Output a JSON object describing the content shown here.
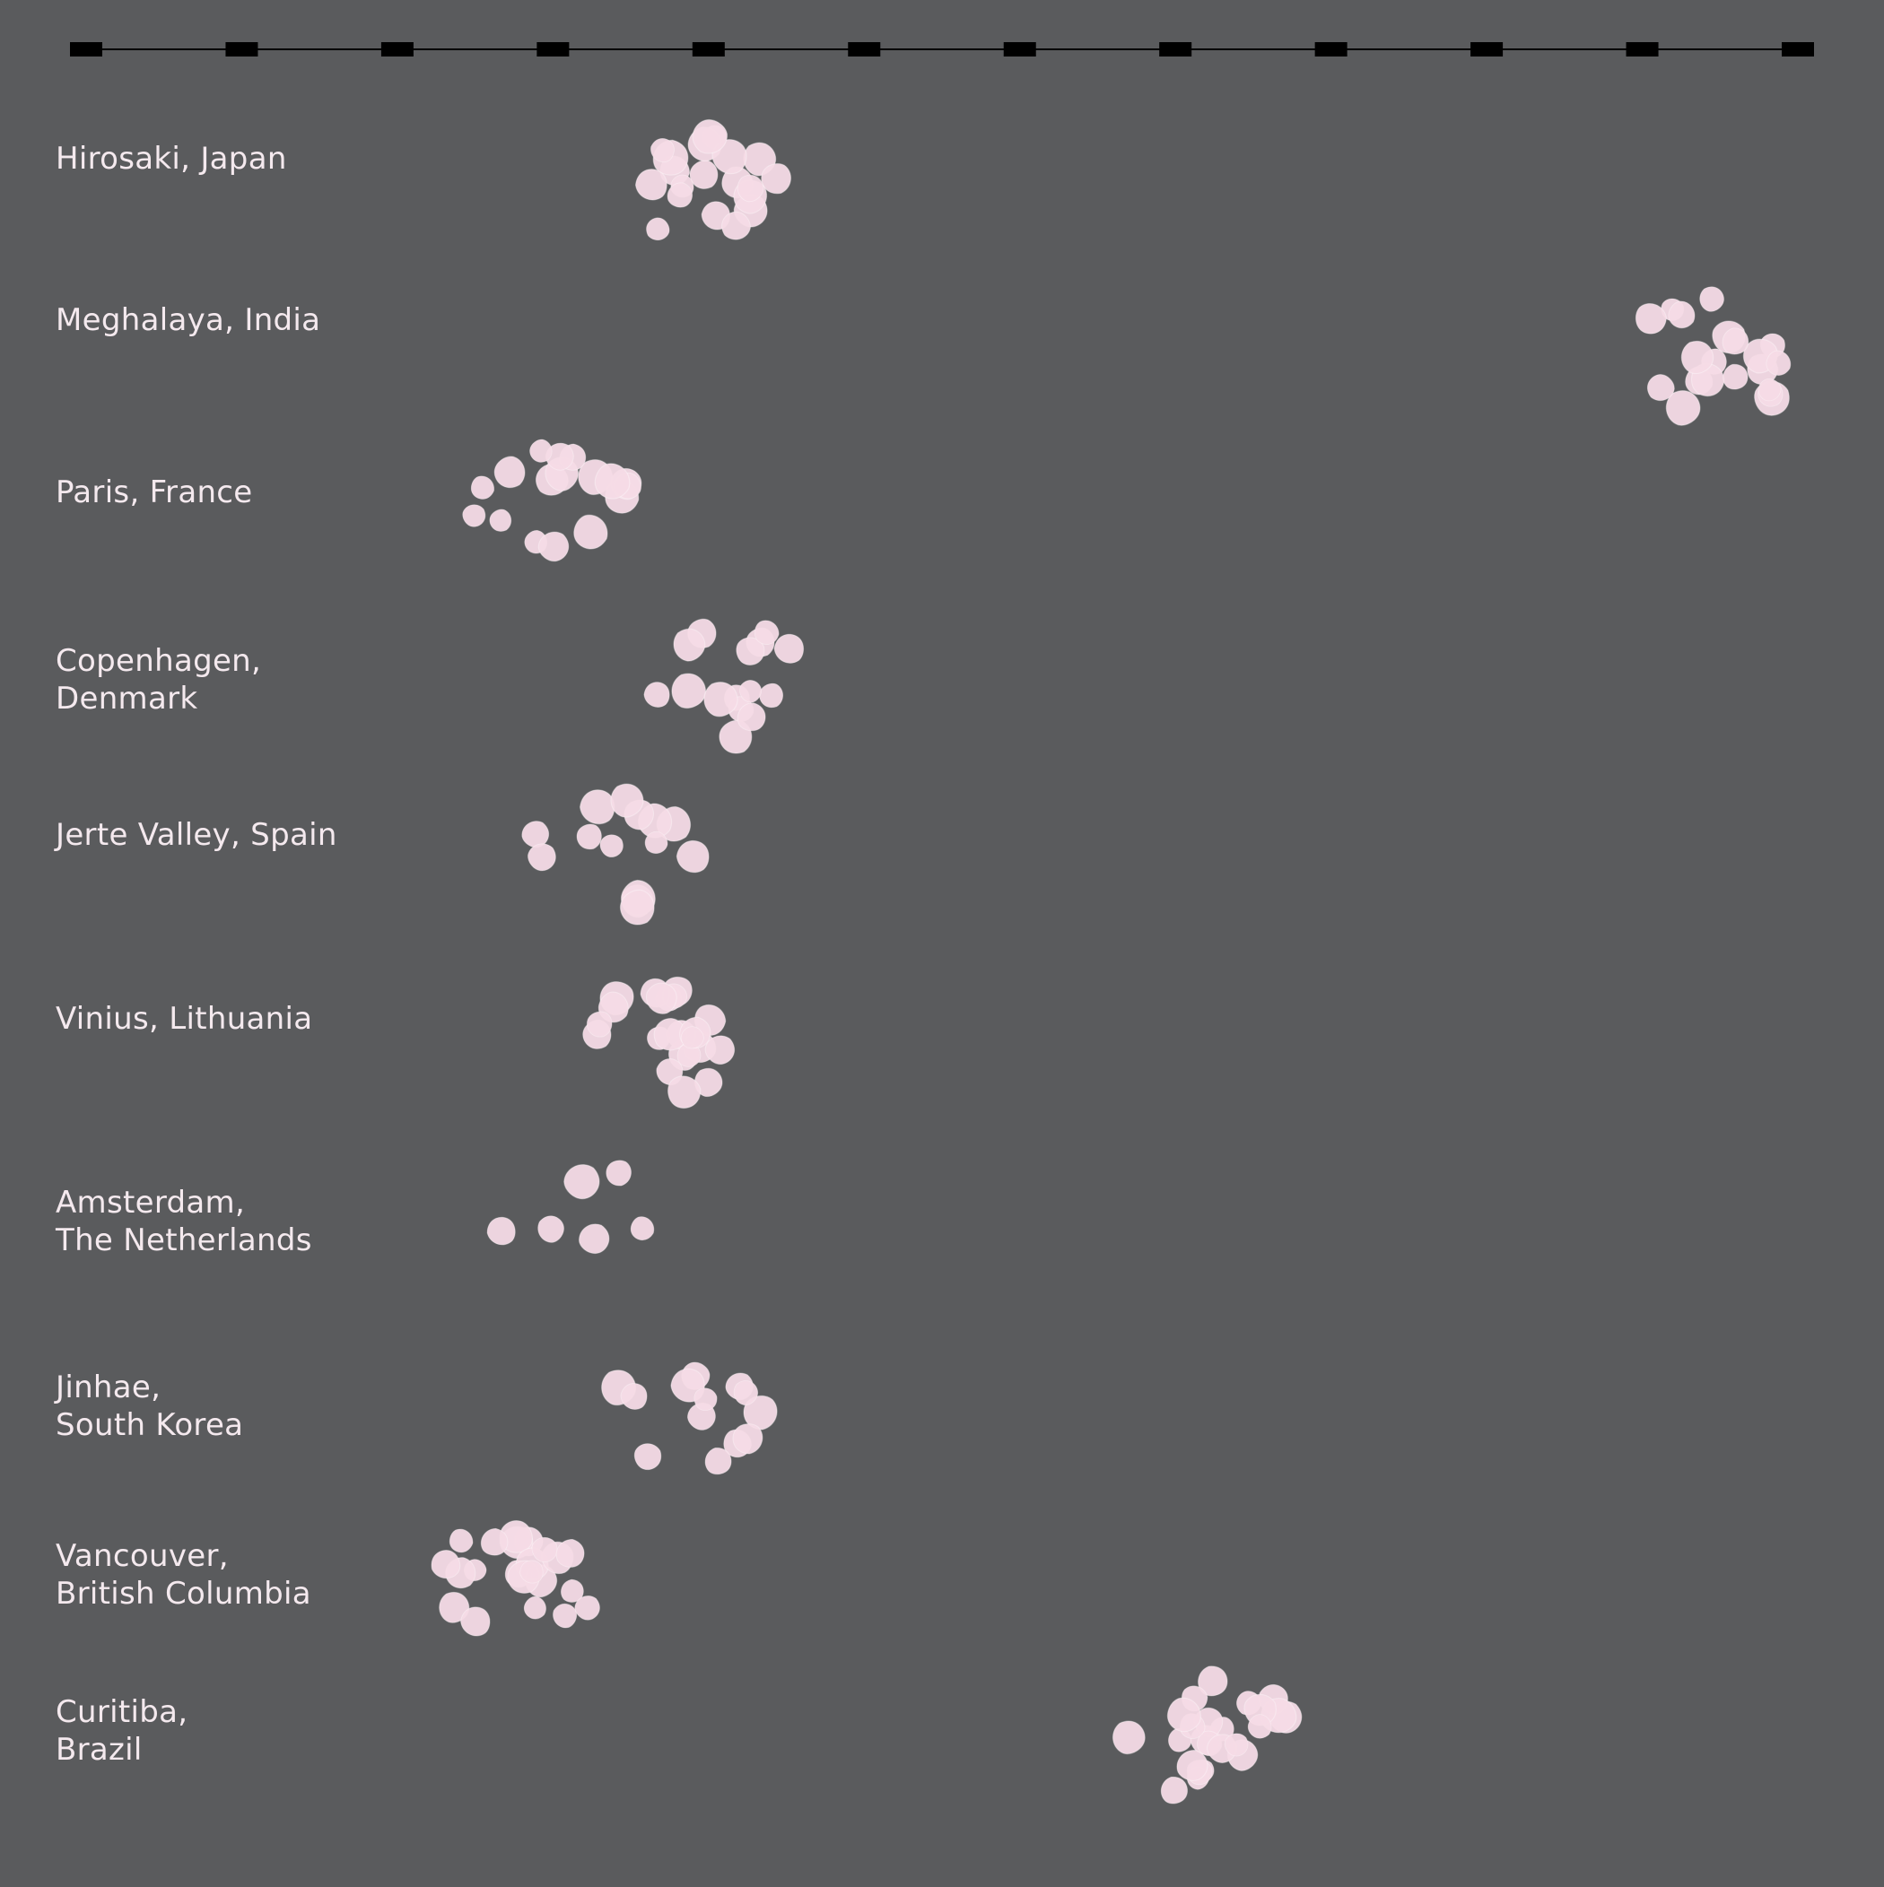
{
  "colors": {
    "background": "#5a5b5d",
    "axis": "#000000",
    "petal": "#f6dbe6",
    "label_text": "#f4e9ee"
  },
  "icon": "cherry-blossom-petal",
  "chart_data": {
    "type": "scatter",
    "title": "",
    "xlabel": "",
    "ylabel": "",
    "x_tick_count": 12,
    "grid": false,
    "legend": "none",
    "categories": [
      "Hirosaki, Japan",
      "Meghalaya, India",
      "Paris, France",
      "Copenhagen,\nDenmark",
      "Jerte Valley, Spain",
      "Vinius, Lithuania",
      "Amsterdam,\nThe Netherlands",
      "Jinhae,\nSouth Korea",
      "Vancouver,\nBritish Columbia",
      "Curitiba,\nBrazil"
    ],
    "values": [
      4.0,
      10.5,
      3.0,
      4.1,
      3.4,
      3.8,
      3.2,
      3.9,
      2.8,
      7.2
    ],
    "petal_counts": [
      20,
      20,
      17,
      15,
      14,
      22,
      6,
      13,
      22,
      24
    ]
  }
}
